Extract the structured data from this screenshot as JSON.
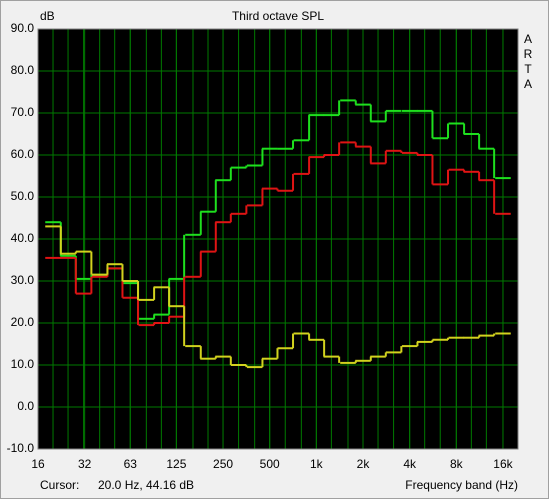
{
  "chart_data": {
    "type": "step",
    "title": "Third octave SPL",
    "y_label": "dB",
    "x_label": "Frequency band (Hz)",
    "watermark": "ARTA",
    "cursor_label": "Cursor:",
    "cursor_value": "20.0 Hz, 44.16 dB",
    "log_x": true,
    "grid": true,
    "x": [
      20,
      25,
      31.5,
      40,
      50,
      63,
      80,
      100,
      125,
      160,
      200,
      250,
      315,
      400,
      500,
      630,
      800,
      1000,
      1250,
      1600,
      2000,
      2500,
      3150,
      4000,
      5000,
      6300,
      8000,
      10000,
      12500,
      16000
    ],
    "series": [
      {
        "color": "#1ee01e",
        "values": [
          44,
          36,
          30.5,
          31.5,
          33,
          29.5,
          21,
          22,
          30.5,
          41,
          46.5,
          54,
          57,
          57.5,
          61.5,
          61.5,
          63.5,
          69.5,
          69.5,
          73,
          72,
          68,
          70.5,
          70.5,
          70.5,
          64,
          67.5,
          65,
          61.5,
          54.5
        ]
      },
      {
        "color": "#e01414",
        "values": [
          35.5,
          35.5,
          27,
          31,
          33,
          26,
          19.5,
          20,
          21.5,
          31,
          37,
          44,
          46,
          48,
          52,
          51.5,
          55.5,
          59.5,
          60,
          63,
          62,
          58,
          61,
          60.5,
          60,
          53,
          56.5,
          56,
          54,
          46
        ]
      },
      {
        "color": "#d2d21e",
        "values": [
          43,
          36.5,
          37,
          31.5,
          34,
          30,
          25.5,
          28.5,
          24,
          14.5,
          11.5,
          12,
          10,
          9.5,
          11.5,
          14,
          17.5,
          16,
          12,
          10.5,
          11,
          12,
          13,
          14.5,
          15.5,
          16,
          16.5,
          16.5,
          17,
          17.5
        ]
      }
    ],
    "xlim": [
      16,
      20000
    ],
    "xticks": [
      16,
      32,
      63,
      125,
      250,
      500,
      {
        "value": 1000,
        "label": "1k"
      },
      {
        "value": 2000,
        "label": "2k"
      },
      {
        "value": 4000,
        "label": "4k"
      },
      {
        "value": 8000,
        "label": "8k"
      },
      {
        "value": 16000,
        "label": "16k"
      }
    ],
    "ylim": [
      -10,
      90
    ],
    "yticks": [
      {
        "value": -10,
        "label": "-10.0"
      },
      {
        "value": 0,
        "label": "0.0"
      },
      {
        "value": 10,
        "label": "10.0"
      },
      {
        "value": 20,
        "label": "20.0"
      },
      {
        "value": 30,
        "label": "30.0"
      },
      {
        "value": 40,
        "label": "40.0"
      },
      {
        "value": 50,
        "label": "50.0"
      },
      {
        "value": 60,
        "label": "60.0"
      },
      {
        "value": 70,
        "label": "70.0"
      },
      {
        "value": 80,
        "label": "80.0"
      },
      {
        "value": 90,
        "label": "90.0"
      }
    ]
  }
}
